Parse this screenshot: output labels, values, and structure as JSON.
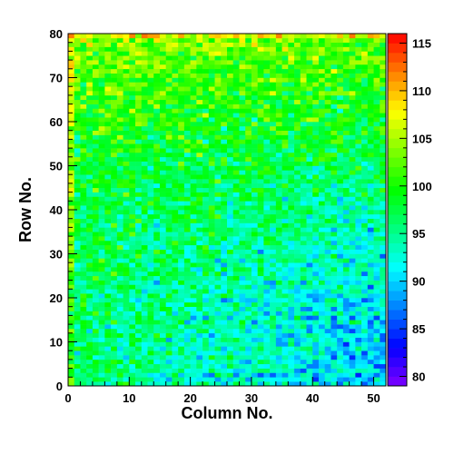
{
  "chart_data": {
    "type": "heatmap",
    "title": "",
    "xlabel": "Column No.",
    "ylabel": "Row No.",
    "xlim": [
      0,
      52
    ],
    "ylim": [
      0,
      80
    ],
    "n_columns": 52,
    "n_rows": 80,
    "x_ticks": [
      "0",
      "10",
      "20",
      "30",
      "40",
      "50"
    ],
    "y_ticks": [
      "0",
      "10",
      "20",
      "30",
      "40",
      "50",
      "60",
      "70",
      "80"
    ],
    "zlim": [
      79,
      116
    ],
    "colorbar_ticks": [
      "80",
      "85",
      "90",
      "95",
      "100",
      "105",
      "110",
      "115"
    ],
    "value_trend": {
      "baseline": 96,
      "top_rows_high": 104,
      "right_side_low": 91,
      "bottom_right_low": 88
    },
    "grid": false,
    "legend": "colorbar-right"
  }
}
